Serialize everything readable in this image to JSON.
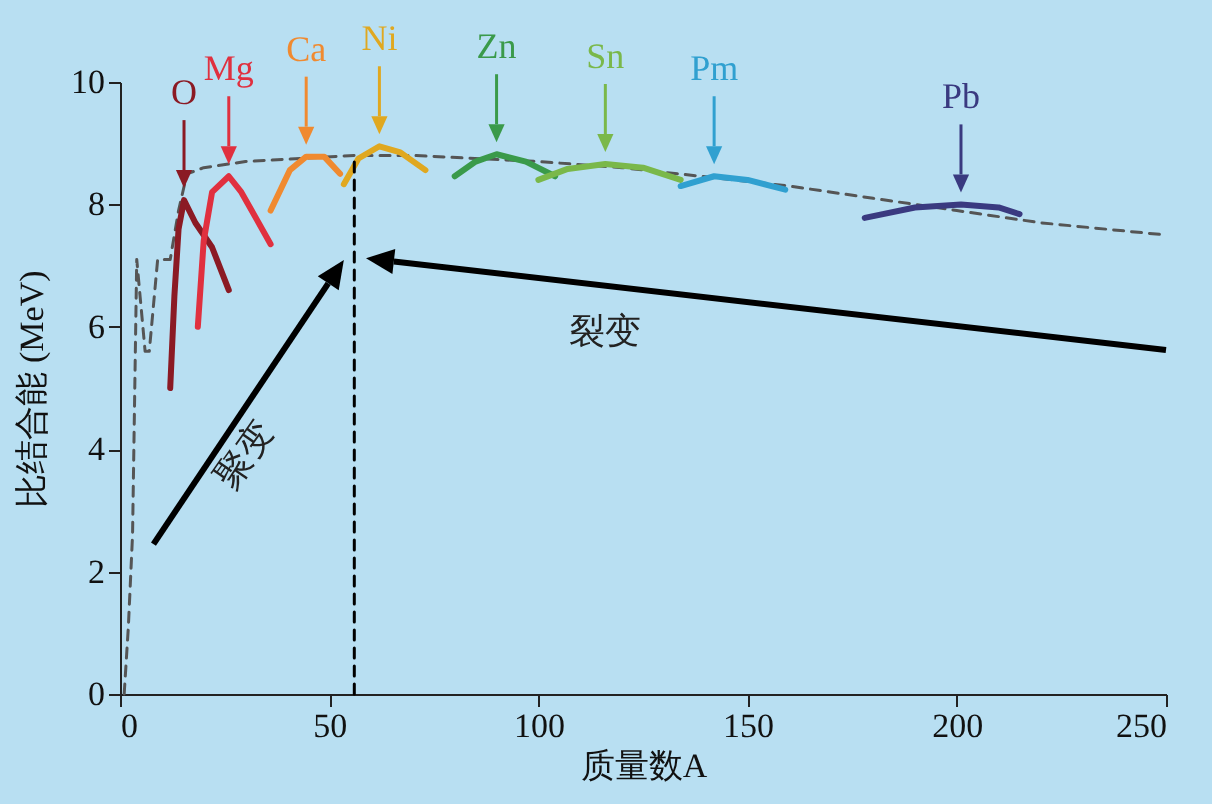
{
  "chart_data": {
    "type": "line",
    "xlabel": "质量数A",
    "ylabel": "比结合能 (MeV)",
    "xlim": [
      0,
      250
    ],
    "ylim": [
      0,
      10
    ],
    "xticks": [
      0,
      50,
      100,
      150,
      200,
      250
    ],
    "yticks": [
      0,
      2,
      4,
      6,
      8,
      10
    ],
    "annotations": [
      "聚变",
      "裂变"
    ],
    "series": [
      {
        "color": "#555555",
        "line_style": "dashed",
        "x": [
          1,
          2,
          3,
          4,
          6,
          7,
          9,
          12,
          14,
          16,
          20,
          30,
          56,
          70,
          100,
          120,
          140,
          160,
          180,
          200,
          220,
          250
        ],
        "values": [
          0,
          1.1,
          2.6,
          7.1,
          5.6,
          5.6,
          7.1,
          7.1,
          7.9,
          8.5,
          8.6,
          8.7,
          8.8,
          8.8,
          8.7,
          8.6,
          8.45,
          8.3,
          8.1,
          7.9,
          7.7,
          7.5
        ]
      },
      {
        "name": "O",
        "color": "#8b1a24",
        "x": [
          12,
          13,
          14,
          15.3,
          18,
          22,
          26
        ],
        "values": [
          5.0,
          6.5,
          7.6,
          8.07,
          7.7,
          7.3,
          6.6
        ]
      },
      {
        "name": "Mg",
        "color": "#e0303f",
        "x": [
          18.6,
          20,
          22,
          26,
          29,
          36
        ],
        "values": [
          6.0,
          7.4,
          8.2,
          8.46,
          8.2,
          7.35
        ]
      },
      {
        "name": "Ca",
        "color": "#f08a30",
        "x": [
          36,
          40.6,
          44.5,
          48.8,
          52.6
        ],
        "values": [
          7.9,
          8.56,
          8.78,
          8.78,
          8.5
        ]
      },
      {
        "name": "Ni",
        "color": "#e0a820",
        "x": [
          53.5,
          57,
          62,
          67,
          73
        ],
        "values": [
          8.33,
          8.75,
          8.95,
          8.85,
          8.56
        ]
      },
      {
        "name": "Zn",
        "color": "#3a9a4a",
        "x": [
          80,
          85,
          90,
          97,
          104
        ],
        "values": [
          8.46,
          8.7,
          8.82,
          8.7,
          8.46
        ]
      },
      {
        "name": "Sn",
        "color": "#7ab84a",
        "x": [
          100,
          107,
          116,
          125,
          134
        ],
        "values": [
          8.4,
          8.58,
          8.66,
          8.6,
          8.4
        ]
      },
      {
        "name": "Pm",
        "color": "#30a0d0",
        "x": [
          134,
          142,
          150,
          159
        ],
        "values": [
          8.3,
          8.46,
          8.4,
          8.24
        ]
      },
      {
        "name": "Pb",
        "color": "#3a3a80",
        "x": [
          178,
          190,
          201,
          210,
          215
        ],
        "values": [
          7.78,
          7.95,
          8.0,
          7.95,
          7.84
        ]
      },
      {
        "color": "#000000",
        "line_style": "dashed",
        "x": [
          56,
          56
        ],
        "values": [
          0,
          8.8
        ]
      }
    ]
  }
}
